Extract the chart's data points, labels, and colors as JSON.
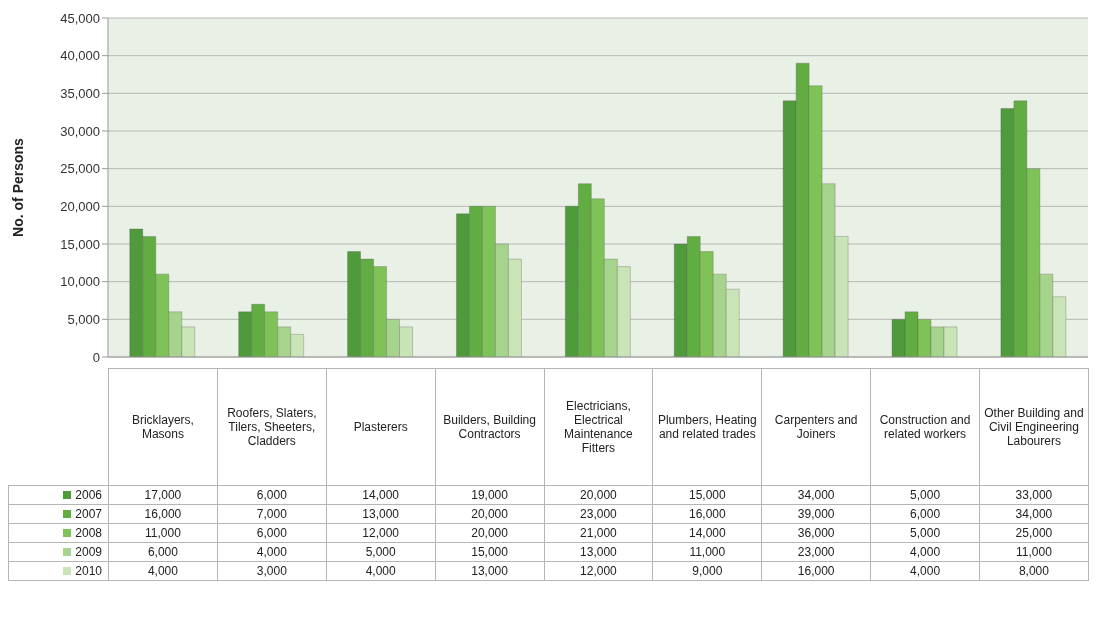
{
  "chart_data": {
    "type": "bar",
    "ylabel": "No. of Persons",
    "categories": [
      "Bricklayers, Masons",
      "Roofers, Slaters, Tilers, Sheeters, Cladders",
      "Plasterers",
      "Builders, Building Contractors",
      "Electricians, Electrical Maintenance Fitters",
      "Plumbers, Heating and related trades",
      "Carpenters and Joiners",
      "Construction and related workers",
      "Other Building and Civil Engineering Labourers"
    ],
    "series": [
      {
        "name": "2006",
        "color": "#4f9a3a",
        "values": [
          17000,
          6000,
          14000,
          19000,
          20000,
          15000,
          34000,
          5000,
          33000
        ],
        "value_labels": [
          "17,000",
          "6,000",
          "14,000",
          "19,000",
          "20,000",
          "15,000",
          "34,000",
          "5,000",
          "33,000"
        ]
      },
      {
        "name": "2007",
        "color": "#62ad42",
        "values": [
          16000,
          7000,
          13000,
          20000,
          23000,
          16000,
          39000,
          6000,
          34000
        ],
        "value_labels": [
          "16,000",
          "7,000",
          "13,000",
          "20,000",
          "23,000",
          "16,000",
          "39,000",
          "6,000",
          "34,000"
        ]
      },
      {
        "name": "2008",
        "color": "#7fc257",
        "values": [
          11000,
          6000,
          12000,
          20000,
          21000,
          14000,
          36000,
          5000,
          25000
        ],
        "value_labels": [
          "11,000",
          "6,000",
          "12,000",
          "20,000",
          "21,000",
          "14,000",
          "36,000",
          "5,000",
          "25,000"
        ]
      },
      {
        "name": "2009",
        "color": "#a6d48c",
        "values": [
          6000,
          4000,
          5000,
          15000,
          13000,
          11000,
          23000,
          4000,
          11000
        ],
        "value_labels": [
          "6,000",
          "4,000",
          "5,000",
          "15,000",
          "13,000",
          "11,000",
          "23,000",
          "4,000",
          "11,000"
        ]
      },
      {
        "name": "2010",
        "color": "#c9e4b6",
        "values": [
          4000,
          3000,
          4000,
          13000,
          12000,
          9000,
          16000,
          4000,
          8000
        ],
        "value_labels": [
          "4,000",
          "3,000",
          "4,000",
          "13,000",
          "12,000",
          "9,000",
          "16,000",
          "4,000",
          "8,000"
        ]
      }
    ],
    "ylim": [
      0,
      45000
    ],
    "yticks": [
      0,
      {
        "value": 5000,
        "label": "5,000"
      },
      {
        "value": 10000,
        "label": "10,000"
      },
      {
        "value": 15000,
        "label": "15,000"
      },
      {
        "value": 20000,
        "label": "20,000"
      },
      {
        "value": 25000,
        "label": "25,000"
      },
      {
        "value": 30000,
        "label": "30,000"
      },
      {
        "value": 35000,
        "label": "35,000"
      },
      {
        "value": 40000,
        "label": "40,000"
      },
      {
        "value": 45000,
        "label": "45,000"
      }
    ],
    "grid": "y",
    "legend": "bottom"
  }
}
